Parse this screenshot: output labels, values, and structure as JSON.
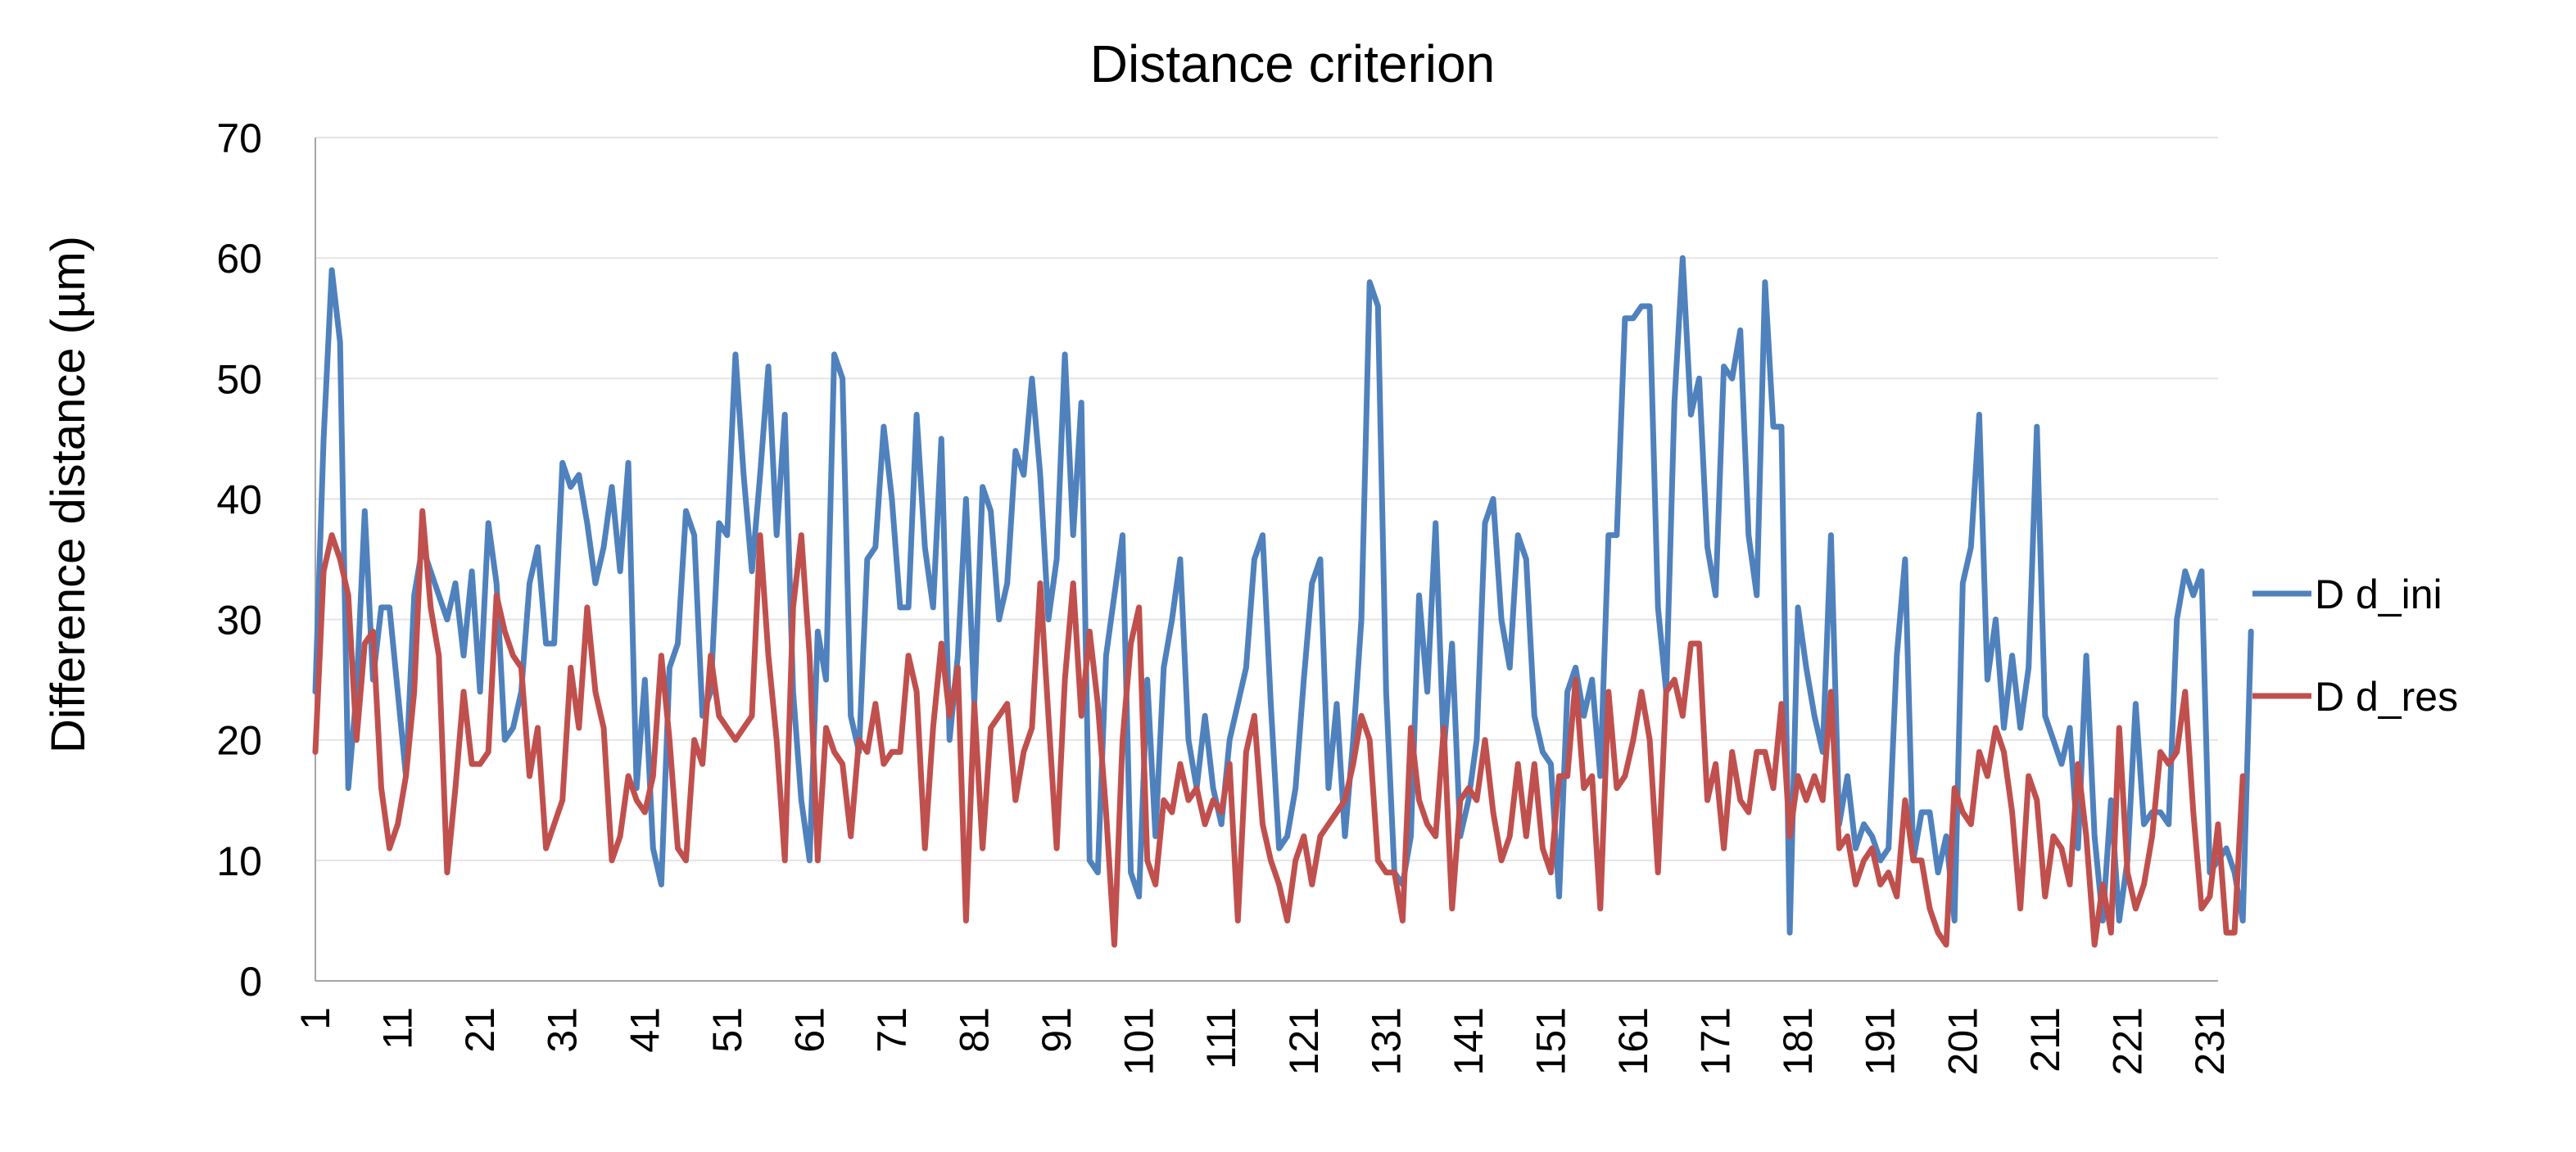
{
  "chart_data": {
    "type": "line",
    "title": "Distance criterion",
    "xlabel": "",
    "ylabel": "Difference distance (µm)",
    "ylim": [
      0,
      70
    ],
    "yticks": [
      0,
      10,
      20,
      30,
      40,
      50,
      60,
      70
    ],
    "xlim": [
      1,
      232
    ],
    "xticks": [
      1,
      11,
      21,
      31,
      41,
      51,
      61,
      71,
      81,
      91,
      101,
      111,
      121,
      131,
      141,
      151,
      161,
      171,
      181,
      191,
      201,
      211,
      221,
      231
    ],
    "legend_position": "right",
    "grid": true,
    "series": [
      {
        "name": "D d_ini",
        "color": "#4F81BD",
        "values": [
          24,
          45,
          59,
          53,
          16,
          24,
          39,
          25,
          31,
          31,
          24,
          17,
          32,
          36,
          34,
          32,
          30,
          33,
          27,
          34,
          24,
          38,
          33,
          20,
          21,
          24,
          33,
          36,
          28,
          28,
          43,
          41,
          42,
          38,
          33,
          36,
          41,
          34,
          43,
          16,
          25,
          11,
          8,
          26,
          28,
          39,
          37,
          22,
          24,
          38,
          37,
          52,
          42,
          34,
          42,
          51,
          37,
          47,
          24,
          15,
          10,
          29,
          25,
          52,
          50,
          22,
          19,
          35,
          36,
          46,
          40,
          31,
          31,
          47,
          36,
          31,
          45,
          20,
          27,
          40,
          23,
          41,
          39,
          30,
          33,
          44,
          42,
          50,
          42,
          30,
          35,
          52,
          37,
          48,
          10,
          9,
          27,
          32,
          37,
          9,
          7,
          25,
          12,
          26,
          30,
          35,
          20,
          16,
          22,
          16,
          13,
          20,
          23,
          26,
          35,
          37,
          23,
          11,
          12,
          16,
          25,
          33,
          35,
          16,
          23,
          12,
          20,
          30,
          58,
          56,
          24,
          9,
          8,
          12,
          32,
          24,
          38,
          19,
          28,
          12,
          15,
          20,
          38,
          40,
          30,
          26,
          37,
          35,
          22,
          19,
          18,
          7,
          24,
          26,
          22,
          25,
          17,
          37,
          37,
          55,
          55,
          56,
          56,
          31,
          24,
          48,
          60,
          47,
          50,
          36,
          32,
          51,
          50,
          54,
          37,
          32,
          58,
          46,
          46,
          4,
          31,
          26,
          22,
          19,
          37,
          13,
          17,
          11,
          13,
          12,
          10,
          11,
          27,
          35,
          10,
          14,
          14,
          9,
          12,
          5,
          33,
          36,
          47,
          25,
          30,
          21,
          27,
          21,
          26,
          46,
          22,
          20,
          18,
          21,
          11,
          27,
          12,
          5,
          15,
          5,
          10,
          23,
          13,
          14,
          14,
          13,
          30,
          34,
          32,
          34,
          9,
          10,
          11,
          9,
          5,
          29
        ]
      },
      {
        "name": "D d_res",
        "color": "#C0504D",
        "values": [
          19,
          34,
          37,
          35,
          32,
          20,
          28,
          29,
          16,
          11,
          13,
          17,
          24,
          39,
          31,
          27,
          9,
          16,
          24,
          18,
          18,
          19,
          32,
          29,
          27,
          26,
          17,
          21,
          11,
          13,
          15,
          26,
          21,
          31,
          24,
          21,
          10,
          12,
          17,
          15,
          14,
          17,
          27,
          20,
          11,
          10,
          20,
          18,
          27,
          22,
          21,
          20,
          21,
          22,
          37,
          27,
          20,
          10,
          31,
          37,
          27,
          10,
          21,
          19,
          18,
          12,
          20,
          19,
          23,
          18,
          19,
          19,
          27,
          24,
          11,
          21,
          28,
          22,
          26,
          5,
          23,
          11,
          21,
          22,
          23,
          15,
          19,
          21,
          33,
          22,
          11,
          25,
          33,
          22,
          29,
          23,
          14,
          3,
          20,
          28,
          31,
          10,
          8,
          15,
          14,
          18,
          15,
          16,
          13,
          15,
          14,
          18,
          5,
          19,
          22,
          13,
          10,
          8,
          5,
          10,
          12,
          8,
          12,
          13,
          14,
          15,
          18,
          22,
          20,
          10,
          9,
          9,
          5,
          21,
          15,
          13,
          12,
          21,
          6,
          15,
          16,
          15,
          20,
          14,
          10,
          12,
          18,
          12,
          18,
          11,
          9,
          17,
          17,
          25,
          16,
          17,
          6,
          24,
          16,
          17,
          20,
          24,
          20,
          9,
          24,
          25,
          22,
          28,
          28,
          15,
          18,
          11,
          19,
          15,
          14,
          19,
          19,
          16,
          23,
          12,
          17,
          15,
          17,
          15,
          24,
          11,
          12,
          8,
          10,
          11,
          8,
          9,
          7,
          15,
          10,
          10,
          6,
          4,
          3,
          16,
          14,
          13,
          19,
          17,
          21,
          19,
          14,
          6,
          17,
          15,
          7,
          12,
          11,
          8,
          18,
          12,
          3,
          8,
          4,
          21,
          9,
          6,
          8,
          12,
          19,
          18,
          19,
          24,
          14,
          6,
          7,
          13,
          4,
          4,
          17
        ]
      }
    ]
  }
}
